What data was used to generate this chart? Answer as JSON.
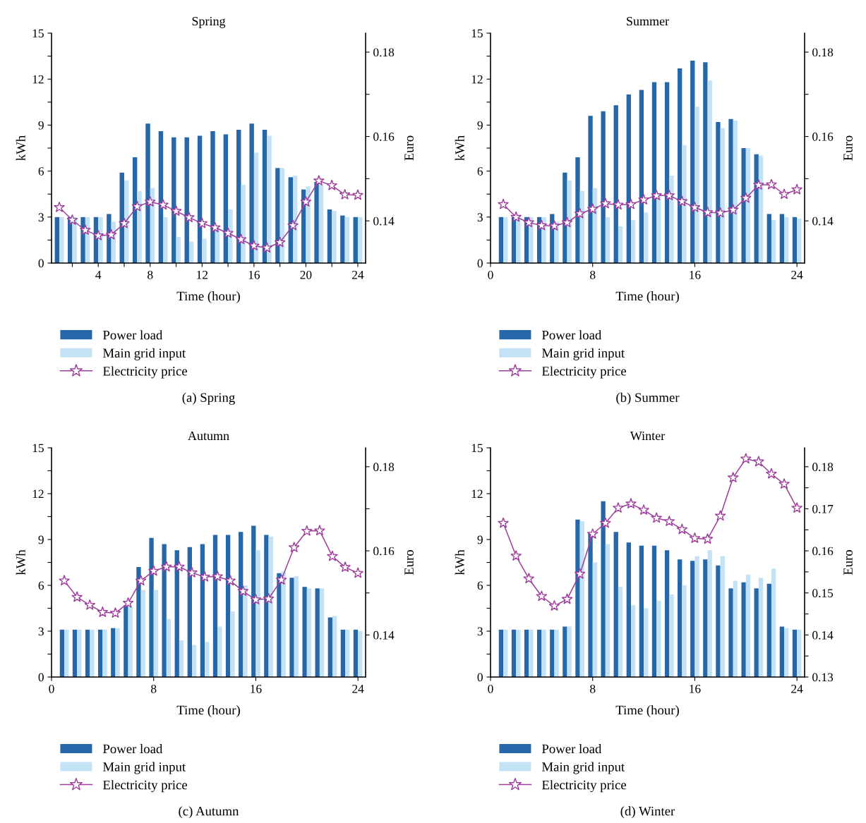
{
  "chart_data": [
    {
      "type": "bar",
      "title": "Spring",
      "xlabel": "Time (hour)",
      "ylabel": "kWh",
      "y2label": "Euro",
      "annotations": [
        "(a) Spring"
      ],
      "x": [
        1,
        2,
        3,
        4,
        5,
        6,
        7,
        8,
        9,
        10,
        11,
        12,
        13,
        14,
        15,
        16,
        17,
        18,
        19,
        20,
        21,
        22,
        23,
        24
      ],
      "xlim": [
        0.4,
        24.6
      ],
      "xticks": [
        {
          "value": 2,
          "label": null
        },
        4,
        {
          "value": 6,
          "label": null
        },
        8,
        {
          "value": 10,
          "label": null
        },
        12,
        {
          "value": 14,
          "label": null
        },
        16,
        {
          "value": 18,
          "label": null
        },
        20,
        {
          "value": 22,
          "label": null
        },
        24
      ],
      "ylim": [
        0,
        15
      ],
      "yticks": [
        0,
        {
          "value": 1.5,
          "label": null
        },
        3,
        {
          "value": 4.5,
          "label": null
        },
        6,
        {
          "value": 7.5,
          "label": null
        },
        9,
        {
          "value": 10.5,
          "label": null
        },
        12,
        {
          "value": 13.5,
          "label": null
        },
        15
      ],
      "y2lim": [
        0.13,
        0.1845
      ],
      "y2ticks": [
        0.14,
        {
          "value": 0.15,
          "label": null
        },
        0.16,
        {
          "value": 0.17,
          "label": null
        },
        0.18
      ],
      "legend": "bottom",
      "marker": "star",
      "line_style": "solid",
      "grid": false,
      "series": [
        {
          "name": "Power load",
          "color": "#2567a8",
          "values": [
            3.0,
            3.0,
            3.0,
            3.0,
            3.2,
            5.9,
            6.9,
            9.1,
            8.6,
            8.2,
            8.2,
            8.3,
            8.6,
            8.4,
            8.7,
            9.1,
            8.7,
            6.2,
            5.6,
            4.8,
            5.3,
            3.5,
            3.1,
            3.0
          ]
        },
        {
          "name": "Main grid input",
          "color": "#c3e2f6",
          "values": [
            3.0,
            3.0,
            3.0,
            3.0,
            2.7,
            5.4,
            4.7,
            4.9,
            3.0,
            1.7,
            1.4,
            1.6,
            2.3,
            3.5,
            5.1,
            7.2,
            8.3,
            6.2,
            5.7,
            5.0,
            5.1,
            3.4,
            3.0,
            3.0
          ]
        },
        {
          "name": "Electricity price",
          "type": "line",
          "axis": "y2",
          "color": "#9e3f9c",
          "values": [
            0.1432,
            0.1402,
            0.1378,
            0.1365,
            0.1367,
            0.1394,
            0.1434,
            0.1445,
            0.1438,
            0.1423,
            0.1408,
            0.1394,
            0.1384,
            0.1371,
            0.1356,
            0.1341,
            0.1336,
            0.1349,
            0.1389,
            0.1445,
            0.1495,
            0.1484,
            0.1462,
            0.1461
          ]
        }
      ]
    },
    {
      "type": "bar",
      "title": "Summer",
      "xlabel": "Time (hour)",
      "ylabel": "kWh",
      "y2label": "Euro",
      "annotations": [
        "(b) Summer"
      ],
      "x": [
        1,
        2,
        3,
        4,
        5,
        6,
        7,
        8,
        9,
        10,
        11,
        12,
        13,
        14,
        15,
        16,
        17,
        18,
        19,
        20,
        21,
        22,
        23,
        24
      ],
      "xlim": [
        0,
        24.6
      ],
      "xticks": [
        0,
        8,
        16,
        24
      ],
      "ylim": [
        0,
        15
      ],
      "yticks": [
        0,
        {
          "value": 1.5,
          "label": null
        },
        3,
        {
          "value": 4.5,
          "label": null
        },
        6,
        {
          "value": 7.5,
          "label": null
        },
        9,
        {
          "value": 10.5,
          "label": null
        },
        12,
        {
          "value": 13.5,
          "label": null
        },
        15
      ],
      "y2lim": [
        0.13,
        0.1845
      ],
      "y2ticks": [
        0.14,
        {
          "value": 0.15,
          "label": null
        },
        0.16,
        {
          "value": 0.17,
          "label": null
        },
        0.18
      ],
      "legend": "bottom",
      "marker": "star",
      "line_style": "solid",
      "grid": false,
      "series": [
        {
          "name": "Power load",
          "color": "#2567a8",
          "values": [
            3.0,
            3.0,
            3.0,
            3.0,
            3.2,
            5.9,
            6.9,
            9.6,
            9.9,
            10.3,
            11.0,
            11.3,
            11.8,
            11.8,
            12.7,
            13.2,
            13.1,
            9.2,
            9.4,
            7.5,
            7.1,
            3.2,
            3.2,
            3.0
          ]
        },
        {
          "name": "Main grid input",
          "color": "#c3e2f6",
          "values": [
            3.0,
            3.0,
            3.0,
            3.0,
            2.7,
            5.4,
            4.7,
            4.9,
            3.0,
            2.4,
            2.8,
            3.3,
            4.6,
            5.7,
            7.7,
            10.2,
            11.9,
            8.8,
            9.3,
            7.5,
            7.0,
            2.8,
            3.0,
            2.9
          ]
        },
        {
          "name": "Electricity price",
          "type": "line",
          "axis": "y2",
          "color": "#9e3f9c",
          "values": [
            0.1439,
            0.1409,
            0.1396,
            0.1389,
            0.1388,
            0.1396,
            0.1417,
            0.1428,
            0.1441,
            0.1438,
            0.1439,
            0.145,
            0.146,
            0.146,
            0.1446,
            0.1432,
            0.142,
            0.1419,
            0.1426,
            0.1454,
            0.1485,
            0.1486,
            0.1463,
            0.1474
          ]
        }
      ]
    },
    {
      "type": "bar",
      "title": "Autumn",
      "xlabel": "Time (hour)",
      "ylabel": "kWh",
      "y2label": "Euro",
      "annotations": [
        "(c) Autumn"
      ],
      "x": [
        1,
        2,
        3,
        4,
        5,
        6,
        7,
        8,
        9,
        10,
        11,
        12,
        13,
        14,
        15,
        16,
        17,
        18,
        19,
        20,
        21,
        22,
        23,
        24
      ],
      "xlim": [
        0,
        24.6
      ],
      "xticks": [
        0,
        8,
        16,
        24
      ],
      "ylim": [
        0,
        15
      ],
      "yticks": [
        0,
        {
          "value": 1.5,
          "label": null
        },
        3,
        {
          "value": 4.5,
          "label": null
        },
        6,
        {
          "value": 7.5,
          "label": null
        },
        9,
        {
          "value": 10.5,
          "label": null
        },
        12,
        {
          "value": 13.5,
          "label": null
        },
        15
      ],
      "y2lim": [
        0.13,
        0.1845
      ],
      "y2ticks": [
        0.14,
        {
          "value": 0.15,
          "label": null
        },
        0.16,
        {
          "value": 0.17,
          "label": null
        },
        0.18
      ],
      "legend": "bottom",
      "marker": "star",
      "line_style": "solid",
      "grid": false,
      "series": [
        {
          "name": "Power load",
          "color": "#2567a8",
          "values": [
            3.1,
            3.1,
            3.1,
            3.1,
            3.2,
            4.7,
            7.2,
            9.1,
            8.7,
            8.3,
            8.5,
            8.7,
            9.3,
            9.3,
            9.5,
            9.9,
            9.3,
            6.8,
            6.5,
            5.9,
            5.8,
            3.9,
            3.1,
            3.1
          ]
        },
        {
          "name": "Main grid input",
          "color": "#c3e2f6",
          "values": [
            3.1,
            3.1,
            3.1,
            3.1,
            3.2,
            4.6,
            5.7,
            5.7,
            3.8,
            2.4,
            2.1,
            2.3,
            3.3,
            4.3,
            6.0,
            8.3,
            9.2,
            6.9,
            6.6,
            5.8,
            5.8,
            4.0,
            3.1,
            3.0
          ]
        },
        {
          "name": "Electricity price",
          "type": "line",
          "axis": "y2",
          "color": "#9e3f9c",
          "values": [
            0.1529,
            0.149,
            0.1471,
            0.1454,
            0.1452,
            0.1476,
            0.1529,
            0.1552,
            0.1562,
            0.1562,
            0.1548,
            0.1538,
            0.1539,
            0.1529,
            0.1504,
            0.1484,
            0.1486,
            0.1531,
            0.1608,
            0.1647,
            0.1648,
            0.1587,
            0.1561,
            0.1547
          ]
        }
      ]
    },
    {
      "type": "bar",
      "title": "Winter",
      "xlabel": "Time (hour)",
      "ylabel": "kWh",
      "y2label": "Euro",
      "annotations": [
        "(d) Winter"
      ],
      "x": [
        1,
        2,
        3,
        4,
        5,
        6,
        7,
        8,
        9,
        10,
        11,
        12,
        13,
        14,
        15,
        16,
        17,
        18,
        19,
        20,
        21,
        22,
        23,
        24
      ],
      "xlim": [
        0,
        24.6
      ],
      "xticks": [
        0,
        8,
        16,
        24
      ],
      "ylim": [
        0,
        15
      ],
      "yticks": [
        0,
        {
          "value": 1.5,
          "label": null
        },
        3,
        {
          "value": 4.5,
          "label": null
        },
        6,
        {
          "value": 7.5,
          "label": null
        },
        9,
        {
          "value": 10.5,
          "label": null
        },
        12,
        {
          "value": 13.5,
          "label": null
        },
        15
      ],
      "y2lim": [
        0.13,
        0.1845
      ],
      "y2ticks": [
        0.13,
        {
          "value": 0.135,
          "label": null
        },
        0.14,
        {
          "value": 0.145,
          "label": null
        },
        0.15,
        {
          "value": 0.155,
          "label": null
        },
        0.16,
        {
          "value": 0.165,
          "label": null
        },
        0.17,
        {
          "value": 0.175,
          "label": null
        },
        0.18
      ],
      "legend": "bottom",
      "marker": "star",
      "line_style": "solid",
      "grid": false,
      "series": [
        {
          "name": "Power load",
          "color": "#2567a8",
          "values": [
            3.1,
            3.1,
            3.1,
            3.1,
            3.1,
            3.3,
            10.3,
            9.4,
            11.5,
            9.5,
            8.8,
            8.6,
            8.6,
            8.3,
            7.7,
            7.6,
            7.7,
            7.3,
            5.8,
            6.2,
            5.8,
            6.1,
            3.3,
            3.1
          ]
        },
        {
          "name": "Main grid input",
          "color": "#c3e2f6",
          "values": [
            3.1,
            3.1,
            3.1,
            3.1,
            3.1,
            3.3,
            10.2,
            7.5,
            8.7,
            5.9,
            4.7,
            4.5,
            5.0,
            5.4,
            6.0,
            7.9,
            8.3,
            7.9,
            6.3,
            6.7,
            6.5,
            7.1,
            3.2,
            3.1
          ]
        },
        {
          "name": "Electricity price",
          "type": "line",
          "axis": "y2",
          "color": "#9e3f9c",
          "values": [
            0.1666,
            0.1588,
            0.1534,
            0.1492,
            0.1469,
            0.1485,
            0.1545,
            0.164,
            0.1666,
            0.1702,
            0.1712,
            0.1697,
            0.1678,
            0.167,
            0.1651,
            0.163,
            0.1628,
            0.1683,
            0.1774,
            0.1819,
            0.1812,
            0.1783,
            0.1759,
            0.1702
          ]
        }
      ]
    }
  ]
}
